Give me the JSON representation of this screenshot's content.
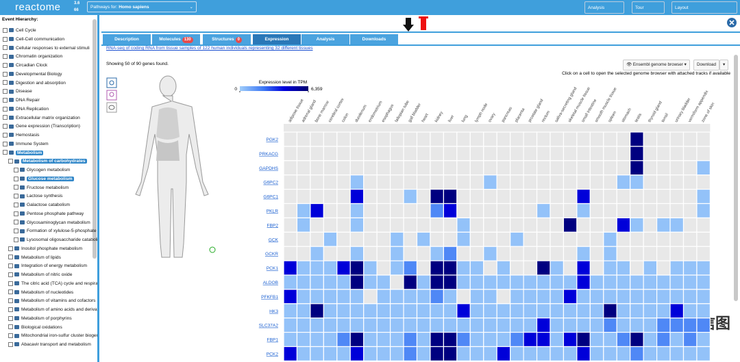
{
  "header": {
    "logo": "reactome",
    "version": "3.6",
    "count": "66",
    "species_label": "Pathways for:",
    "species": "Homo sapiens",
    "buttons": [
      "Analysis",
      "Tour",
      "Layout"
    ]
  },
  "sidebar": {
    "title": "Event Hierarchy:",
    "items": [
      {
        "label": "Cell Cycle",
        "level": 0
      },
      {
        "label": "Cell-Cell communication",
        "level": 0
      },
      {
        "label": "Cellular responses to external stimuli",
        "level": 0
      },
      {
        "label": "Chromatin organization",
        "level": 0
      },
      {
        "label": "Circadian Clock",
        "level": 0
      },
      {
        "label": "Developmental Biology",
        "level": 0
      },
      {
        "label": "Digestion and absorption",
        "level": 0
      },
      {
        "label": "Disease",
        "level": 0
      },
      {
        "label": "DNA Repair",
        "level": 0
      },
      {
        "label": "DNA Replication",
        "level": 0
      },
      {
        "label": "Extracellular matrix organization",
        "level": 0
      },
      {
        "label": "Gene expression (Transcription)",
        "level": 0
      },
      {
        "label": "Hemostasis",
        "level": 0
      },
      {
        "label": "Immune System",
        "level": 0
      },
      {
        "label": "Metabolism",
        "level": 0,
        "highlighted": true
      },
      {
        "label": "Metabolism of carbohydrates",
        "level": 1,
        "highlighted": true
      },
      {
        "label": "Glycogen metabolism",
        "level": 2
      },
      {
        "label": "Glucose metabolism",
        "level": 2,
        "highlighted": true
      },
      {
        "label": "Fructose metabolism",
        "level": 2
      },
      {
        "label": "Lactose synthesis",
        "level": 2
      },
      {
        "label": "Galactose catabolism",
        "level": 2
      },
      {
        "label": "Pentose phosphate pathway",
        "level": 2
      },
      {
        "label": "Glycosaminoglycan metabolism",
        "level": 2
      },
      {
        "label": "Formation of xylulose-5-phosphate",
        "level": 2
      },
      {
        "label": "Lysosomal oligosaccharide catabolism",
        "level": 2
      },
      {
        "label": "Inositol phosphate metabolism",
        "level": 1
      },
      {
        "label": "Metabolism of lipids",
        "level": 1
      },
      {
        "label": "Integration of energy metabolism",
        "level": 1
      },
      {
        "label": "Metabolism of nitric oxide",
        "level": 1
      },
      {
        "label": "The citric acid (TCA) cycle and respiratory electron transport",
        "level": 1
      },
      {
        "label": "Metabolism of nucleotides",
        "level": 1
      },
      {
        "label": "Metabolism of vitamins and cofactors",
        "level": 1
      },
      {
        "label": "Metabolism of amino acids and derivatives",
        "level": 1
      },
      {
        "label": "Metabolism of porphyrins",
        "level": 1
      },
      {
        "label": "Biological oxidations",
        "level": 1
      },
      {
        "label": "Mitochondrial iron-sulfur cluster biogenesis",
        "level": 1
      },
      {
        "label": "Abacavir transport and metabolism",
        "level": 1
      }
    ]
  },
  "tabs": [
    {
      "label": "Description"
    },
    {
      "label": "Molecules",
      "badge": 130
    },
    {
      "label": "Structures",
      "badge": 0
    },
    {
      "label": "Expression",
      "active": true
    },
    {
      "label": "Analysis"
    },
    {
      "label": "Downloads"
    }
  ],
  "expression": {
    "source_link": "RNA-seq of coding RNA from tissue samples of 122 human individuals representing 32 different tissues",
    "summary": "Showing 50 of 90 genes found.",
    "ensembl_button": "Ensembl genome browser",
    "download_button": "Download",
    "hint": "Click on a cell to open the selected genome browser with attached tracks if available",
    "legend": {
      "title": "Expression level in TPM",
      "range": [
        0,
        {
          "value": 6359,
          "label": "6,359"
        }
      ]
    },
    "heatmap": {
      "tissues": [
        "adipose tissue",
        "adrenal gland",
        "bone marrow",
        "cerebral cortex",
        "colon",
        "duodenum",
        "endometrium",
        "esophagus",
        "fallopian tube",
        "gall bladder",
        "heart",
        "kidney",
        "liver",
        "lung",
        "lymph node",
        "ovary",
        "pancreas",
        "placenta",
        "prostate gland",
        "rectum",
        "saliva-secreting gland",
        "skeletal muscle tissue",
        "small intestine",
        "smooth muscle tissue",
        "spleen",
        "stomach",
        "testis",
        "thyroid gland",
        "tonsil",
        "urinary bladder",
        "vermiform appendix",
        "zone of skin"
      ],
      "genes": [
        "PGK2",
        "PRKACG",
        "GAPDHS",
        "G6PC2",
        "G6PC1",
        "PKLR",
        "FBP2",
        "GCK",
        "GCKR",
        "PCK1",
        "ALDOB",
        "PFKFB1",
        "HK3",
        "SLC37A2",
        "FBP1",
        "PCK2"
      ],
      "values": [
        [
          null,
          null,
          null,
          null,
          null,
          null,
          null,
          null,
          null,
          null,
          null,
          null,
          null,
          null,
          null,
          null,
          null,
          null,
          null,
          null,
          null,
          null,
          null,
          null,
          null,
          null,
          6000,
          null,
          null,
          null,
          null,
          null
        ],
        [
          null,
          null,
          null,
          null,
          null,
          null,
          null,
          null,
          null,
          null,
          null,
          null,
          null,
          null,
          null,
          null,
          null,
          null,
          null,
          null,
          null,
          null,
          null,
          null,
          null,
          null,
          6000,
          null,
          null,
          null,
          null,
          null
        ],
        [
          null,
          null,
          null,
          null,
          null,
          null,
          null,
          null,
          null,
          null,
          null,
          null,
          null,
          null,
          null,
          null,
          null,
          null,
          null,
          null,
          null,
          null,
          null,
          null,
          null,
          null,
          6000,
          null,
          null,
          null,
          null,
          300
        ],
        [
          null,
          null,
          null,
          null,
          null,
          300,
          null,
          null,
          null,
          null,
          null,
          null,
          null,
          null,
          null,
          300,
          null,
          null,
          null,
          null,
          null,
          null,
          null,
          null,
          null,
          300,
          300,
          null,
          null,
          null,
          null,
          null
        ],
        [
          null,
          null,
          null,
          null,
          null,
          4200,
          null,
          null,
          null,
          300,
          null,
          6000,
          6000,
          null,
          null,
          null,
          null,
          null,
          null,
          null,
          null,
          null,
          4200,
          null,
          null,
          null,
          null,
          null,
          null,
          null,
          null,
          300
        ],
        [
          null,
          300,
          4200,
          null,
          null,
          300,
          null,
          null,
          null,
          null,
          null,
          1800,
          4200,
          null,
          null,
          null,
          null,
          null,
          null,
          300,
          null,
          null,
          300,
          null,
          null,
          null,
          null,
          null,
          null,
          null,
          null,
          300
        ],
        [
          null,
          300,
          null,
          null,
          null,
          300,
          null,
          null,
          null,
          null,
          null,
          null,
          null,
          300,
          null,
          null,
          null,
          null,
          null,
          null,
          null,
          6000,
          null,
          null,
          null,
          4200,
          300,
          null,
          300,
          300,
          null,
          null
        ],
        [
          null,
          null,
          null,
          300,
          null,
          null,
          null,
          null,
          300,
          null,
          300,
          null,
          null,
          300,
          null,
          null,
          null,
          300,
          null,
          null,
          null,
          null,
          null,
          null,
          300,
          null,
          null,
          null,
          null,
          null,
          null,
          null
        ],
        [
          null,
          null,
          300,
          null,
          null,
          300,
          null,
          null,
          300,
          null,
          null,
          300,
          1800,
          null,
          null,
          300,
          null,
          null,
          null,
          null,
          null,
          null,
          300,
          null,
          300,
          null,
          null,
          null,
          null,
          null,
          null,
          null
        ],
        [
          4200,
          300,
          300,
          300,
          4200,
          6000,
          300,
          null,
          300,
          1800,
          null,
          6000,
          6000,
          300,
          300,
          null,
          300,
          null,
          null,
          6000,
          300,
          null,
          4200,
          null,
          300,
          300,
          null,
          300,
          null,
          300,
          300,
          300
        ],
        [
          300,
          300,
          300,
          300,
          300,
          6000,
          300,
          300,
          null,
          6000,
          300,
          6000,
          6000,
          300,
          300,
          300,
          300,
          300,
          300,
          300,
          300,
          300,
          4200,
          300,
          300,
          300,
          300,
          300,
          300,
          300,
          300,
          300
        ],
        [
          4200,
          300,
          300,
          300,
          300,
          300,
          null,
          300,
          300,
          300,
          300,
          1800,
          300,
          null,
          300,
          300,
          null,
          300,
          300,
          300,
          300,
          4200,
          300,
          300,
          300,
          300,
          300,
          300,
          300,
          300,
          300,
          300
        ],
        [
          300,
          300,
          6000,
          300,
          300,
          300,
          300,
          300,
          300,
          300,
          300,
          300,
          300,
          4200,
          300,
          300,
          300,
          300,
          300,
          300,
          300,
          300,
          300,
          300,
          6000,
          300,
          300,
          300,
          300,
          4200,
          300,
          300
        ],
        [
          300,
          300,
          300,
          300,
          300,
          300,
          300,
          300,
          300,
          300,
          300,
          300,
          300,
          300,
          300,
          300,
          300,
          300,
          300,
          4200,
          300,
          300,
          300,
          300,
          1800,
          300,
          300,
          300,
          1800,
          1800,
          1800,
          1800
        ],
        [
          300,
          300,
          300,
          300,
          1800,
          6000,
          300,
          300,
          300,
          1800,
          300,
          6000,
          6000,
          1800,
          300,
          300,
          300,
          1800,
          4200,
          4200,
          300,
          4200,
          6000,
          300,
          300,
          1800,
          6000,
          300,
          1800,
          300,
          1800,
          300
        ],
        [
          4200,
          300,
          300,
          300,
          300,
          4200,
          300,
          300,
          300,
          1800,
          300,
          6000,
          6000,
          300,
          300,
          300,
          4200,
          300,
          300,
          300,
          300,
          300,
          4200,
          300,
          300,
          300,
          1800,
          300,
          300,
          300,
          300,
          300
        ]
      ]
    }
  },
  "watermark": "生信图"
}
